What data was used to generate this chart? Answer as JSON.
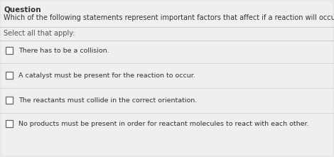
{
  "title": "Question",
  "question": "Which of the following statements represent important factors that affect if a reaction will occur",
  "instruction": "Select all that apply:",
  "options": [
    "There has to be a collision.",
    "A catalyst must be present for the reaction to occur.",
    "The reactants must collide in the correct orientation.",
    "No products must be present in order for reactant molecules to react with each other."
  ],
  "bg_color": "#e8e8e8",
  "panel_color": "#f0efee",
  "title_color": "#333333",
  "question_color": "#333333",
  "instruction_color": "#555555",
  "option_color": "#333333",
  "checkbox_color": "#ffffff",
  "checkbox_edge_color": "#666666",
  "separator_color": "#cccccc",
  "title_fontsize": 7.5,
  "question_fontsize": 7.0,
  "instruction_fontsize": 7.0,
  "option_fontsize": 6.8,
  "figwidth": 4.7,
  "figheight": 2.21,
  "dpi": 100
}
